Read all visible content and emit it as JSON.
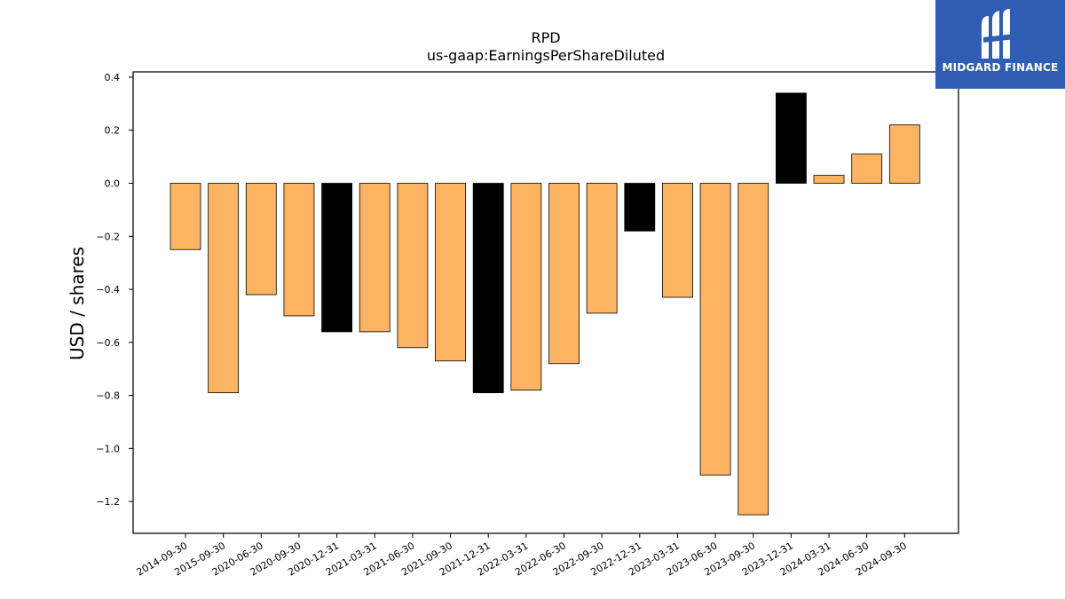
{
  "chart_data": {
    "type": "bar",
    "title": "RPD",
    "subtitle": "us-gaap:EarningsPerShareDiluted",
    "xlabel": "",
    "ylabel": "USD / shares",
    "ylim": [
      -1.32,
      0.42
    ],
    "yticks": [
      0.4,
      0.2,
      0.0,
      -0.2,
      -0.4,
      -0.6,
      -0.8,
      -1.0,
      -1.2
    ],
    "ytick_labels": [
      "0.4",
      "0.2",
      "0.0",
      "−0.2",
      "−0.4",
      "−0.6",
      "−0.8",
      "−1.0",
      "−1.2"
    ],
    "categories": [
      "2014-09-30",
      "2015-09-30",
      "2020-06-30",
      "2020-09-30",
      "2020-12-31",
      "2021-03-31",
      "2021-06-30",
      "2021-09-30",
      "2021-12-31",
      "2022-03-31",
      "2022-06-30",
      "2022-09-30",
      "2022-12-31",
      "2023-03-31",
      "2023-06-30",
      "2023-09-30",
      "2023-12-31",
      "2024-03-31",
      "2024-06-30",
      "2024-09-30"
    ],
    "values": [
      -0.25,
      -0.79,
      -0.42,
      -0.5,
      -0.56,
      -0.56,
      -0.62,
      -0.67,
      -0.79,
      -0.78,
      -0.68,
      -0.49,
      -0.18,
      -0.43,
      -1.1,
      -1.25,
      0.34,
      0.03,
      0.11,
      0.22
    ],
    "bar_colors": [
      "#fdb462",
      "#fdb462",
      "#fdb462",
      "#fdb462",
      "#000000",
      "#fdb462",
      "#fdb462",
      "#fdb462",
      "#000000",
      "#fdb462",
      "#fdb462",
      "#fdb462",
      "#000000",
      "#fdb462",
      "#fdb462",
      "#fdb462",
      "#000000",
      "#fdb462",
      "#fdb462",
      "#fdb462"
    ],
    "grid": false,
    "legend": "none"
  },
  "logo": {
    "text": "MIDGARD FINANCE",
    "color": "#2f5db3"
  }
}
